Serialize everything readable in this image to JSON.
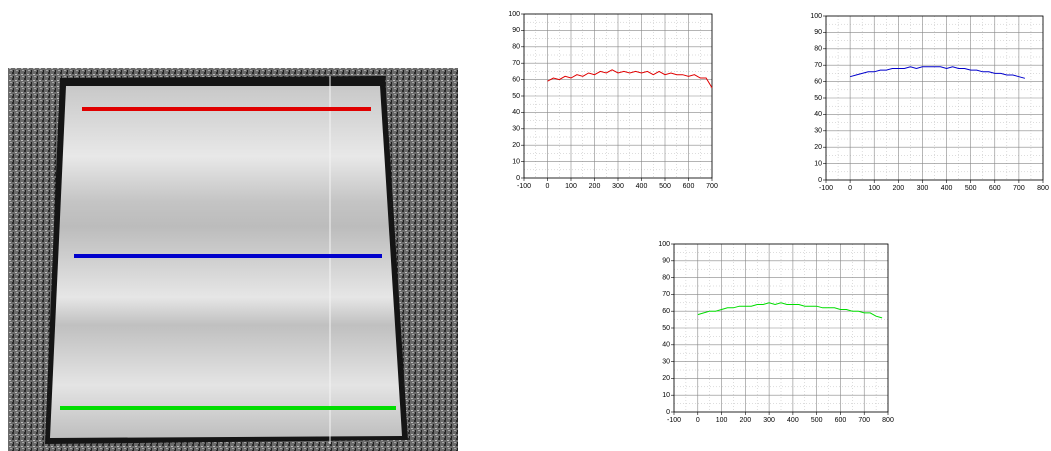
{
  "chart_data": [
    {
      "type": "line",
      "color": "#e00000",
      "x": [
        0,
        25,
        50,
        75,
        100,
        125,
        150,
        175,
        200,
        225,
        250,
        275,
        300,
        325,
        350,
        375,
        400,
        425,
        450,
        475,
        500,
        525,
        550,
        575,
        600,
        625,
        650,
        675,
        700
      ],
      "values": [
        59,
        61,
        60,
        62,
        61,
        63,
        62,
        64,
        63,
        65,
        64,
        66,
        64,
        65,
        64,
        65,
        64,
        65,
        63,
        65,
        63,
        64,
        63,
        63,
        62,
        63,
        61,
        61,
        55
      ],
      "xlim": [
        -100,
        700
      ],
      "xticks": [
        -100,
        0,
        100,
        200,
        300,
        400,
        500,
        600,
        700
      ],
      "ylim": [
        0,
        100
      ],
      "yticks": [
        0,
        10,
        20,
        30,
        40,
        50,
        60,
        70,
        80,
        90,
        100
      ],
      "grid": true
    },
    {
      "type": "line",
      "color": "#0000cc",
      "x": [
        0,
        25,
        50,
        75,
        100,
        125,
        150,
        175,
        200,
        225,
        250,
        275,
        300,
        325,
        350,
        375,
        400,
        425,
        450,
        475,
        500,
        525,
        550,
        575,
        600,
        625,
        650,
        675,
        700,
        725
      ],
      "values": [
        63,
        64,
        65,
        66,
        66,
        67,
        67,
        68,
        68,
        68,
        69,
        68,
        69,
        69,
        69,
        69,
        68,
        69,
        68,
        68,
        67,
        67,
        66,
        66,
        65,
        65,
        64,
        64,
        63,
        62
      ],
      "xlim": [
        -100,
        800
      ],
      "xticks": [
        -100,
        0,
        100,
        200,
        300,
        400,
        500,
        600,
        700,
        800
      ],
      "ylim": [
        0,
        100
      ],
      "yticks": [
        0,
        10,
        20,
        30,
        40,
        50,
        60,
        70,
        80,
        90,
        100
      ],
      "grid": true
    },
    {
      "type": "line",
      "color": "#00dd00",
      "x": [
        0,
        25,
        50,
        75,
        100,
        125,
        150,
        175,
        200,
        225,
        250,
        275,
        300,
        325,
        350,
        375,
        400,
        425,
        450,
        475,
        500,
        525,
        550,
        575,
        600,
        625,
        650,
        675,
        700,
        725,
        750,
        775
      ],
      "values": [
        58,
        59,
        60,
        60,
        61,
        62,
        62,
        63,
        63,
        63,
        64,
        64,
        65,
        64,
        65,
        64,
        64,
        64,
        63,
        63,
        63,
        62,
        62,
        62,
        61,
        61,
        60,
        60,
        59,
        59,
        57,
        56
      ],
      "xlim": [
        -100,
        800
      ],
      "xticks": [
        -100,
        0,
        100,
        200,
        300,
        400,
        500,
        600,
        700,
        800
      ],
      "ylim": [
        0,
        100
      ],
      "yticks": [
        0,
        10,
        20,
        30,
        40,
        50,
        60,
        70,
        80,
        90,
        100
      ],
      "grid": true
    }
  ]
}
